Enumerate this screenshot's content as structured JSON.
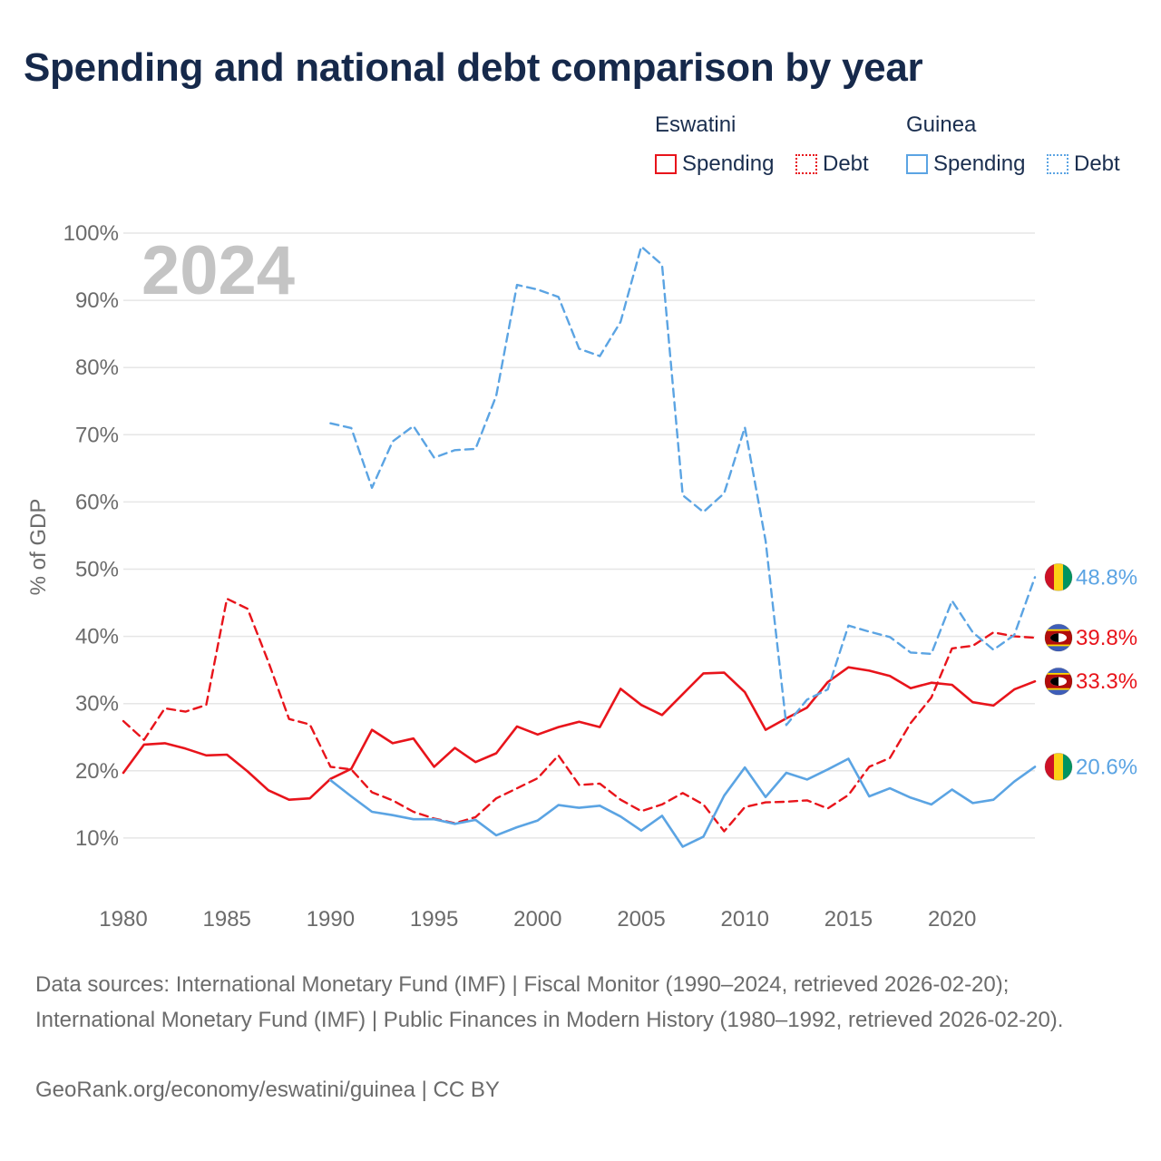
{
  "title": "Spending and national debt comparison by year",
  "legend": {
    "groups": [
      {
        "country": "Eswatini",
        "color": "#e8141b",
        "items": [
          "Spending",
          "Debt"
        ]
      },
      {
        "country": "Guinea",
        "color": "#5ba4e3",
        "items": [
          "Spending",
          "Debt"
        ]
      }
    ]
  },
  "footer": {
    "sources": "Data sources: International Monetary Fund (IMF) | Fiscal Monitor (1990–2024, retrieved 2026-02-20); International Monetary Fund (IMF) | Public Finances in Modern History (1980–1992, retrieved 2026-02-20).",
    "credit": "GeoRank.org/economy/eswatini/guinea | CC BY"
  },
  "chart_data": {
    "type": "line",
    "title": "Spending and national debt comparison by year",
    "year_label": "2024",
    "ylabel": "% of GDP",
    "xlabel": "",
    "xlim": [
      1980,
      2024
    ],
    "ylim": [
      0,
      100
    ],
    "x_ticks": [
      1980,
      1985,
      1990,
      1995,
      2000,
      2005,
      2010,
      2015,
      2020
    ],
    "y_ticks": [
      10,
      20,
      30,
      40,
      50,
      60,
      70,
      80,
      90,
      100
    ],
    "y_tick_labels": [
      "10%",
      "20%",
      "30%",
      "40%",
      "50%",
      "60%",
      "70%",
      "80%",
      "90%",
      "100%"
    ],
    "grid": true,
    "series": [
      {
        "name": "Eswatini Spending",
        "country": "Eswatini",
        "kind": "Spending",
        "color": "#e8141b",
        "dash": false,
        "end_label": "33.3%",
        "flag": "eswatini",
        "x": [
          1980,
          1981,
          1982,
          1983,
          1984,
          1985,
          1986,
          1987,
          1988,
          1989,
          1990,
          1991,
          1992,
          1993,
          1994,
          1995,
          1996,
          1997,
          1998,
          1999,
          2000,
          2001,
          2002,
          2003,
          2004,
          2005,
          2006,
          2007,
          2008,
          2009,
          2010,
          2011,
          2012,
          2013,
          2014,
          2015,
          2016,
          2017,
          2018,
          2019,
          2020,
          2021,
          2022,
          2023,
          2024
        ],
        "values": [
          19.7,
          23.9,
          24.1,
          23.3,
          22.3,
          22.4,
          19.9,
          17.1,
          15.7,
          15.9,
          18.8,
          20.3,
          26.1,
          24.1,
          24.8,
          20.6,
          23.4,
          21.3,
          22.6,
          26.6,
          25.4,
          26.5,
          27.3,
          26.5,
          32.2,
          29.8,
          28.3,
          31.4,
          34.5,
          34.6,
          31.7,
          26.1,
          27.8,
          29.4,
          33.2,
          35.4,
          34.9,
          34.1,
          32.3,
          33.1,
          32.8,
          30.2,
          29.7,
          32.1,
          33.3
        ]
      },
      {
        "name": "Eswatini Debt",
        "country": "Eswatini",
        "kind": "Debt",
        "color": "#e8141b",
        "dash": true,
        "end_label": "39.8%",
        "flag": "eswatini",
        "x": [
          1980,
          1981,
          1982,
          1983,
          1984,
          1985,
          1986,
          1987,
          1988,
          1989,
          1990,
          1991,
          1992,
          1993,
          1994,
          1995,
          1996,
          1997,
          1998,
          1999,
          2000,
          2001,
          2002,
          2003,
          2004,
          2005,
          2006,
          2007,
          2008,
          2009,
          2010,
          2011,
          2012,
          2013,
          2014,
          2015,
          2016,
          2017,
          2018,
          2019,
          2020,
          2021,
          2022,
          2023,
          2024
        ],
        "values": [
          27.4,
          24.6,
          29.3,
          28.8,
          29.8,
          45.6,
          44.1,
          36.2,
          27.7,
          26.9,
          20.6,
          20.2,
          16.8,
          15.6,
          13.9,
          12.9,
          12.2,
          13.1,
          15.9,
          17.4,
          18.9,
          22.3,
          17.9,
          18.1,
          15.7,
          14.0,
          15.0,
          16.7,
          15.0,
          11.0,
          14.6,
          15.3,
          15.4,
          15.6,
          14.4,
          16.4,
          20.6,
          21.9,
          27.1,
          30.9,
          38.2,
          38.6,
          40.6,
          40.0,
          39.8
        ]
      },
      {
        "name": "Guinea Spending",
        "country": "Guinea",
        "kind": "Spending",
        "color": "#5ba4e3",
        "dash": false,
        "end_label": "20.6%",
        "flag": "guinea",
        "x": [
          1990,
          1991,
          1992,
          1993,
          1994,
          1995,
          1996,
          1997,
          1998,
          1999,
          2000,
          2001,
          2002,
          2003,
          2004,
          2005,
          2006,
          2007,
          2008,
          2009,
          2010,
          2011,
          2012,
          2013,
          2014,
          2015,
          2016,
          2017,
          2018,
          2019,
          2020,
          2021,
          2022,
          2023,
          2024
        ],
        "values": [
          18.6,
          16.2,
          13.9,
          13.4,
          12.8,
          12.8,
          12.1,
          12.7,
          10.4,
          11.6,
          12.6,
          14.9,
          14.5,
          14.8,
          13.2,
          11.1,
          13.3,
          8.7,
          10.2,
          16.3,
          20.5,
          16.1,
          19.7,
          18.7,
          20.2,
          21.8,
          16.2,
          17.4,
          16.0,
          15.0,
          17.2,
          15.2,
          15.7,
          18.4,
          20.6
        ]
      },
      {
        "name": "Guinea Debt",
        "country": "Guinea",
        "kind": "Debt",
        "color": "#5ba4e3",
        "dash": true,
        "end_label": "48.8%",
        "flag": "guinea",
        "x": [
          1990,
          1991,
          1992,
          1993,
          1994,
          1995,
          1996,
          1997,
          1998,
          1999,
          2000,
          2001,
          2002,
          2003,
          2004,
          2005,
          2006,
          2007,
          2008,
          2009,
          2010,
          2011,
          2012,
          2013,
          2014,
          2015,
          2016,
          2017,
          2018,
          2019,
          2020,
          2021,
          2022,
          2023,
          2024
        ],
        "values": [
          71.7,
          71.0,
          62.1,
          69.0,
          71.3,
          66.6,
          67.7,
          67.9,
          75.8,
          92.3,
          91.6,
          90.5,
          82.8,
          81.7,
          86.8,
          98.0,
          95.3,
          61.0,
          58.5,
          61.3,
          71.1,
          54.2,
          26.8,
          30.6,
          32.1,
          41.6,
          40.7,
          39.9,
          37.6,
          37.4,
          45.3,
          40.6,
          38.0,
          40.2,
          48.8
        ]
      }
    ]
  }
}
